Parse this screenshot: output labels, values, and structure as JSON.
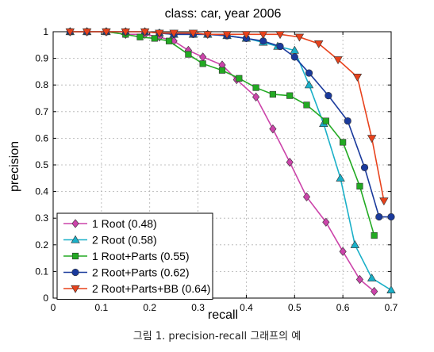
{
  "chart_data": {
    "type": "line",
    "title": "class: car, year 2006",
    "xlabel": "recall",
    "ylabel": "precision",
    "xlim": [
      0,
      0.7
    ],
    "ylim": [
      0,
      1
    ],
    "xticks": [
      "0",
      "0.1",
      "0.2",
      "0.3",
      "0.4",
      "0.5",
      "0.6",
      "0.7"
    ],
    "yticks": [
      "0",
      "0.1",
      "0.2",
      "0.3",
      "0.4",
      "0.5",
      "0.6",
      "0.7",
      "0.8",
      "0.9",
      "1"
    ],
    "grid": true,
    "legend_position": "bottom-left",
    "series": [
      {
        "name": "1 Root (0.48)",
        "color": "#cc44aa",
        "marker": "diamond",
        "x": [
          0.035,
          0.07,
          0.11,
          0.15,
          0.19,
          0.22,
          0.25,
          0.28,
          0.31,
          0.35,
          0.38,
          0.42,
          0.455,
          0.49,
          0.525,
          0.565,
          0.6,
          0.635,
          0.665
        ],
        "y": [
          1.0,
          1.0,
          1.0,
          0.99,
          0.99,
          0.98,
          0.965,
          0.93,
          0.905,
          0.875,
          0.82,
          0.755,
          0.635,
          0.51,
          0.38,
          0.285,
          0.175,
          0.07,
          0.025
        ]
      },
      {
        "name": "2 Root (0.58)",
        "color": "#1ab0c8",
        "marker": "triangle-up",
        "x": [
          0.035,
          0.07,
          0.11,
          0.15,
          0.19,
          0.22,
          0.25,
          0.29,
          0.32,
          0.36,
          0.4,
          0.435,
          0.465,
          0.5,
          0.53,
          0.56,
          0.595,
          0.625,
          0.66,
          0.7
        ],
        "y": [
          1.0,
          1.0,
          1.0,
          1.0,
          1.0,
          0.995,
          0.99,
          0.99,
          0.99,
          0.985,
          0.975,
          0.96,
          0.945,
          0.93,
          0.8,
          0.655,
          0.45,
          0.2,
          0.075,
          0.03
        ]
      },
      {
        "name": "1 Root+Parts (0.55)",
        "color": "#22aa22",
        "marker": "square",
        "x": [
          0.035,
          0.07,
          0.11,
          0.15,
          0.18,
          0.21,
          0.24,
          0.28,
          0.31,
          0.35,
          0.385,
          0.42,
          0.455,
          0.49,
          0.525,
          0.565,
          0.6,
          0.635,
          0.665
        ],
        "y": [
          1.0,
          1.0,
          1.0,
          0.99,
          0.98,
          0.975,
          0.965,
          0.915,
          0.88,
          0.855,
          0.825,
          0.79,
          0.765,
          0.76,
          0.725,
          0.665,
          0.585,
          0.42,
          0.235
        ]
      },
      {
        "name": "2 Root+Parts (0.62)",
        "color": "#1a3a9c",
        "marker": "circle",
        "x": [
          0.035,
          0.07,
          0.11,
          0.15,
          0.19,
          0.22,
          0.25,
          0.29,
          0.32,
          0.36,
          0.4,
          0.435,
          0.47,
          0.5,
          0.53,
          0.57,
          0.61,
          0.645,
          0.675,
          0.7
        ],
        "y": [
          1.0,
          1.0,
          1.0,
          1.0,
          1.0,
          0.995,
          0.99,
          0.99,
          0.99,
          0.985,
          0.975,
          0.965,
          0.945,
          0.905,
          0.845,
          0.76,
          0.665,
          0.49,
          0.305,
          0.305
        ]
      },
      {
        "name": "2 Root+Parts+BB (0.64)",
        "color": "#e8421c",
        "marker": "triangle-down",
        "x": [
          0.035,
          0.07,
          0.11,
          0.15,
          0.19,
          0.22,
          0.25,
          0.29,
          0.32,
          0.36,
          0.4,
          0.435,
          0.47,
          0.51,
          0.55,
          0.59,
          0.63,
          0.66,
          0.685
        ],
        "y": [
          1.0,
          1.0,
          1.0,
          1.0,
          1.0,
          0.995,
          0.995,
          0.995,
          0.99,
          0.99,
          0.99,
          0.99,
          0.99,
          0.98,
          0.955,
          0.895,
          0.83,
          0.6,
          0.365
        ]
      }
    ]
  },
  "caption": "그림 1. precision-recall 그래프의 예"
}
